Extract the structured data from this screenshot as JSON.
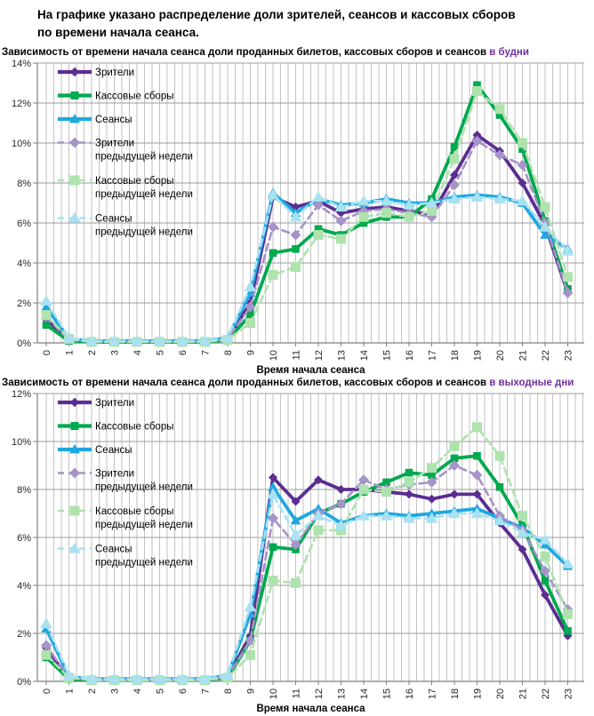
{
  "header": {
    "title": "На графике указано распределение доли зрителей, сеансов и кассовых сборов по времени начала сеанса."
  },
  "colors": {
    "accent_title": "#7030A0",
    "grid": "#B3B3B3",
    "grid_h": "#9E9E9E",
    "axis": "#7F7F7F",
    "viewers": "#5B2D90",
    "boxoffice": "#00A84F",
    "sessions": "#1FA8E0",
    "viewers_prev": "#A693C9",
    "boxoffice_prev": "#AEE3AE",
    "sessions_prev": "#A8E1F2"
  },
  "chart_data": [
    {
      "type": "line",
      "title": "Зависимость от времени начала сеанса доли проданных билетов, кассовых сборов и сеансов",
      "title_accent": "в будни",
      "xlabel": "Время начала сеанса",
      "ylabel": "",
      "ylim": [
        0,
        14
      ],
      "ytick_step": 2,
      "ytick_format": "percent",
      "grid": true,
      "legend_position": "inside-top-left",
      "categories": [
        0,
        1,
        2,
        3,
        4,
        5,
        6,
        7,
        8,
        9,
        10,
        11,
        12,
        13,
        14,
        15,
        16,
        17,
        18,
        19,
        20,
        21,
        22,
        23
      ],
      "series": [
        {
          "key": "viewers",
          "name": "Зрители",
          "name2": "",
          "marker": "diamond",
          "dash": false,
          "values": [
            1.2,
            0.1,
            0.05,
            0.05,
            0.05,
            0.05,
            0.05,
            0.05,
            0.2,
            2.0,
            7.3,
            6.8,
            7.1,
            6.5,
            6.7,
            6.8,
            6.6,
            6.4,
            8.4,
            10.4,
            9.6,
            8.0,
            5.9,
            2.5
          ]
        },
        {
          "key": "boxoffice",
          "name": "Кассовые сборы",
          "name2": "",
          "marker": "square",
          "dash": false,
          "values": [
            0.9,
            0.1,
            0.05,
            0.05,
            0.05,
            0.05,
            0.05,
            0.05,
            0.15,
            1.4,
            4.5,
            4.7,
            5.7,
            5.4,
            6.0,
            6.3,
            6.3,
            7.2,
            9.8,
            12.9,
            11.4,
            9.7,
            6.1,
            2.7
          ]
        },
        {
          "key": "sessions",
          "name": "Сеансы",
          "name2": "",
          "marker": "triangle",
          "dash": false,
          "values": [
            1.8,
            0.2,
            0.1,
            0.1,
            0.1,
            0.1,
            0.1,
            0.1,
            0.25,
            2.5,
            7.5,
            6.5,
            7.2,
            6.9,
            7.0,
            7.2,
            7.0,
            7.0,
            7.3,
            7.4,
            7.3,
            7.0,
            5.4,
            4.7
          ]
        },
        {
          "key": "viewers_prev",
          "name": "Зрители",
          "name2": "предыдущей недели",
          "marker": "diamond",
          "dash": true,
          "values": [
            1.3,
            0.15,
            0.05,
            0.05,
            0.05,
            0.05,
            0.05,
            0.05,
            0.2,
            1.8,
            5.8,
            5.4,
            6.9,
            6.1,
            6.6,
            6.7,
            6.5,
            6.3,
            7.9,
            10.1,
            9.4,
            8.9,
            6.0,
            2.5
          ]
        },
        {
          "key": "boxoffice_prev",
          "name": "Кассовые сборы",
          "name2": "предыдущей недели",
          "marker": "square",
          "dash": true,
          "values": [
            1.4,
            0.2,
            0.05,
            0.05,
            0.05,
            0.05,
            0.05,
            0.05,
            0.15,
            1.0,
            3.4,
            3.8,
            5.4,
            5.2,
            6.3,
            6.5,
            6.3,
            6.6,
            9.2,
            12.6,
            11.7,
            10.0,
            6.8,
            3.3
          ]
        },
        {
          "key": "sessions_prev",
          "name": "Сеансы",
          "name2": "предыдущей недели",
          "marker": "triangle",
          "dash": true,
          "values": [
            2.1,
            0.25,
            0.1,
            0.1,
            0.1,
            0.1,
            0.1,
            0.1,
            0.25,
            2.8,
            7.4,
            6.3,
            7.3,
            6.8,
            7.1,
            7.1,
            6.9,
            7.0,
            7.2,
            7.3,
            7.2,
            7.1,
            5.8,
            4.6
          ]
        }
      ]
    },
    {
      "type": "line",
      "title": "Зависимость от времени начала сеанса доли проданных билетов, кассовых сборов и сеансов",
      "title_accent": "в выходные дни",
      "xlabel": "Время начала сеанса",
      "ylabel": "",
      "ylim": [
        0,
        12
      ],
      "ytick_step": 2,
      "ytick_format": "percent",
      "grid": true,
      "legend_position": "inside-top-left",
      "categories": [
        0,
        1,
        2,
        3,
        4,
        5,
        6,
        7,
        8,
        9,
        10,
        11,
        12,
        13,
        14,
        15,
        16,
        17,
        18,
        19,
        20,
        21,
        22,
        23
      ],
      "series": [
        {
          "key": "viewers",
          "name": "Зрители",
          "name2": "",
          "marker": "diamond",
          "dash": false,
          "values": [
            1.4,
            0.1,
            0.05,
            0.05,
            0.05,
            0.05,
            0.05,
            0.05,
            0.2,
            1.9,
            8.5,
            7.5,
            8.4,
            8.0,
            8.0,
            7.9,
            7.8,
            7.6,
            7.8,
            7.8,
            6.6,
            5.5,
            3.6,
            1.9
          ]
        },
        {
          "key": "boxoffice",
          "name": "Кассовые сборы",
          "name2": "",
          "marker": "square",
          "dash": false,
          "values": [
            1.0,
            0.1,
            0.05,
            0.05,
            0.05,
            0.05,
            0.05,
            0.05,
            0.15,
            1.7,
            5.6,
            5.5,
            7.0,
            7.4,
            7.9,
            8.3,
            8.7,
            8.6,
            9.3,
            9.4,
            8.1,
            6.5,
            4.2,
            2.1
          ]
        },
        {
          "key": "sessions",
          "name": "Сеансы",
          "name2": "",
          "marker": "triangle",
          "dash": false,
          "values": [
            2.2,
            0.2,
            0.1,
            0.1,
            0.1,
            0.1,
            0.1,
            0.1,
            0.25,
            2.8,
            8.1,
            6.7,
            7.2,
            6.6,
            6.9,
            7.0,
            6.9,
            7.0,
            7.1,
            7.2,
            6.8,
            6.4,
            5.7,
            4.8
          ]
        },
        {
          "key": "viewers_prev",
          "name": "Зрители",
          "name2": "предыдущей недели",
          "marker": "diamond",
          "dash": true,
          "values": [
            1.5,
            0.15,
            0.05,
            0.05,
            0.05,
            0.05,
            0.05,
            0.05,
            0.2,
            1.7,
            6.8,
            5.7,
            7.0,
            7.4,
            8.4,
            8.0,
            8.2,
            8.3,
            9.0,
            8.6,
            6.9,
            6.3,
            4.6,
            3.0
          ]
        },
        {
          "key": "boxoffice_prev",
          "name": "Кассовые сборы",
          "name2": "предыдущей недели",
          "marker": "square",
          "dash": true,
          "values": [
            1.1,
            0.15,
            0.05,
            0.05,
            0.05,
            0.05,
            0.05,
            0.05,
            0.15,
            1.1,
            4.2,
            4.1,
            6.3,
            6.3,
            8.0,
            7.9,
            8.3,
            8.9,
            9.8,
            10.6,
            9.4,
            6.9,
            5.2,
            2.8
          ]
        },
        {
          "key": "sessions_prev",
          "name": "Сеансы",
          "name2": "предыдущей недели",
          "marker": "triangle",
          "dash": true,
          "values": [
            2.4,
            0.25,
            0.1,
            0.1,
            0.1,
            0.1,
            0.1,
            0.1,
            0.25,
            3.1,
            7.8,
            6.1,
            6.9,
            6.5,
            6.9,
            6.9,
            6.8,
            6.8,
            7.0,
            7.0,
            6.7,
            6.2,
            5.9,
            4.9
          ]
        }
      ]
    }
  ]
}
